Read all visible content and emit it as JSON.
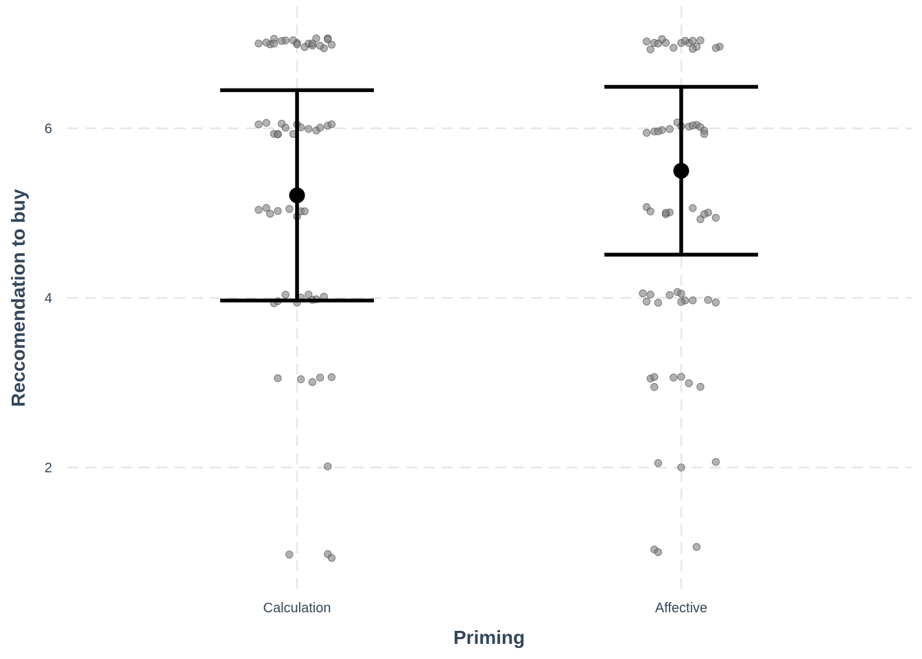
{
  "chart_data": {
    "type": "scatter",
    "title": "",
    "xlabel": "Priming",
    "ylabel": "Reccomendation to buy",
    "categories": [
      "Calculation",
      "Affective"
    ],
    "ylim": [
      0.7,
      7.3
    ],
    "y_ticks": [
      2,
      4,
      6
    ],
    "grid": true,
    "legend": "none",
    "colors": {
      "points": "#7f7f7f",
      "summary": "#000000",
      "text": "#33475b",
      "grid": "#e6e6e6"
    },
    "summary": [
      {
        "category": "Calculation",
        "mean": 5.21,
        "lower": 3.97,
        "upper": 6.45
      },
      {
        "category": "Affective",
        "mean": 5.5,
        "lower": 4.51,
        "upper": 6.49
      }
    ],
    "points": [
      {
        "category": "Calculation",
        "x": [
          -0.1,
          -0.07,
          -0.06,
          -0.03,
          0.0,
          0.03,
          0.05,
          0.07,
          0.09,
          -0.08,
          -0.04,
          0.02,
          0.04,
          0.08,
          -0.06,
          -0.01,
          0.06,
          0.08,
          0.0,
          0.04
        ],
        "y": [
          7,
          7,
          7,
          7,
          7,
          7,
          7,
          7,
          7,
          7,
          7,
          7,
          7,
          7,
          7,
          7,
          7,
          7,
          7,
          7
        ]
      },
      {
        "category": "Calculation",
        "x": [
          -0.1,
          -0.08,
          -0.06,
          -0.05,
          -0.04,
          -0.03,
          -0.01,
          0.0,
          0.01,
          0.03,
          0.05,
          0.08,
          0.09,
          -0.05,
          0.06
        ],
        "y": [
          6,
          6,
          6,
          6,
          6,
          6,
          6,
          6,
          6,
          6,
          6,
          6,
          6,
          6,
          6
        ]
      },
      {
        "category": "Calculation",
        "x": [
          -0.1,
          -0.07,
          -0.05,
          -0.02,
          0.0,
          0.01,
          0.02,
          -0.08
        ],
        "y": [
          5,
          5,
          5,
          5,
          5,
          5,
          5,
          5
        ]
      },
      {
        "category": "Calculation",
        "x": [
          -0.06,
          -0.03,
          0.0,
          0.01,
          0.03,
          0.05,
          0.07,
          -0.05,
          0.04
        ],
        "y": [
          4,
          4,
          4,
          4,
          4,
          4,
          4,
          4,
          4
        ]
      },
      {
        "category": "Calculation",
        "x": [
          -0.05,
          0.01,
          0.04,
          0.06,
          0.09
        ],
        "y": [
          3,
          3,
          3,
          3,
          3
        ]
      },
      {
        "category": "Calculation",
        "x": [
          0.08
        ],
        "y": [
          2
        ]
      },
      {
        "category": "Calculation",
        "x": [
          -0.02,
          0.08,
          0.09
        ],
        "y": [
          1,
          1,
          1
        ]
      },
      {
        "category": "Affective",
        "x": [
          -0.09,
          -0.07,
          -0.06,
          -0.04,
          -0.02,
          0.0,
          0.02,
          0.03,
          0.05,
          0.1,
          -0.05,
          0.01,
          0.04,
          0.09,
          -0.08,
          0.03
        ],
        "y": [
          7,
          7,
          7,
          7,
          7,
          7,
          7,
          7,
          7,
          7,
          7,
          7,
          7,
          7,
          7,
          7
        ]
      },
      {
        "category": "Affective",
        "x": [
          -0.09,
          -0.07,
          -0.05,
          -0.03,
          -0.01,
          0.0,
          0.02,
          0.04,
          0.05,
          0.06,
          -0.06,
          0.03,
          0.06
        ],
        "y": [
          6,
          6,
          6,
          6,
          6,
          6,
          6,
          6,
          6,
          6,
          6,
          6,
          6
        ]
      },
      {
        "category": "Affective",
        "x": [
          -0.09,
          -0.08,
          -0.04,
          -0.03,
          0.03,
          0.05,
          0.07,
          0.09,
          0.06,
          -0.04
        ],
        "y": [
          5,
          5,
          5,
          5,
          5,
          5,
          5,
          5,
          5,
          5
        ]
      },
      {
        "category": "Affective",
        "x": [
          -0.1,
          -0.09,
          -0.06,
          -0.03,
          -0.01,
          0.0,
          0.01,
          0.03,
          0.07,
          0.09,
          -0.08,
          0.0
        ],
        "y": [
          4,
          4,
          4,
          4,
          4,
          4,
          4,
          4,
          4,
          4,
          4,
          4
        ]
      },
      {
        "category": "Affective",
        "x": [
          -0.08,
          -0.07,
          -0.02,
          0.0,
          0.02,
          0.05,
          -0.07
        ],
        "y": [
          3,
          3,
          3,
          3,
          3,
          3,
          3
        ]
      },
      {
        "category": "Affective",
        "x": [
          -0.06,
          0.0,
          0.09
        ],
        "y": [
          2,
          2,
          2
        ]
      },
      {
        "category": "Affective",
        "x": [
          -0.07,
          -0.06,
          0.04
        ],
        "y": [
          1,
          1,
          1
        ]
      }
    ]
  }
}
